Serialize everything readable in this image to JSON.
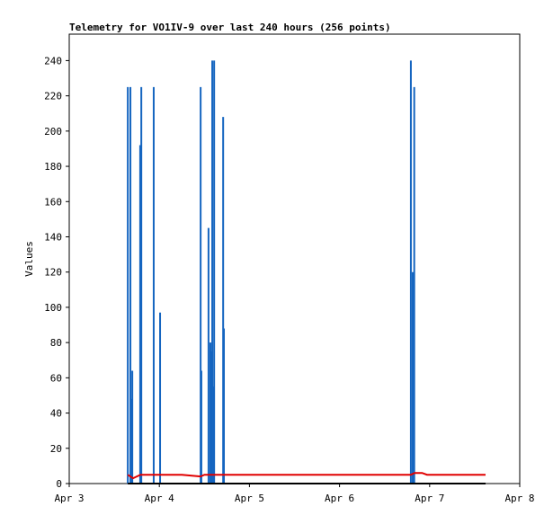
{
  "chart_data": {
    "type": "line",
    "title": "Telemetry for VO1IV-9 over last 240 hours (256 points)",
    "ylabel": "Values",
    "xlim": [
      0,
      120
    ],
    "xticks": [
      {
        "value": 0,
        "label": "Apr 3"
      },
      {
        "value": 24,
        "label": "Apr 4"
      },
      {
        "value": 48,
        "label": "Apr 5"
      },
      {
        "value": 72,
        "label": "Apr 6"
      },
      {
        "value": 96,
        "label": "Apr 7"
      },
      {
        "value": 120,
        "label": "Apr 8"
      }
    ],
    "ylim": [
      0,
      255
    ],
    "yticks": [
      0,
      20,
      40,
      60,
      80,
      100,
      120,
      140,
      160,
      180,
      200,
      220,
      240
    ],
    "series": [
      {
        "color": "#1565c0",
        "style": "impulse",
        "x": [
          15.6,
          16.3,
          16.5,
          16.8,
          18.9,
          19.2,
          22.5,
          24.2,
          35.0,
          35.2,
          37.1,
          37.6,
          37.8,
          38.1,
          38.3,
          38.6,
          41.0,
          41.2,
          91.0,
          91.5,
          91.9
        ],
        "values": [
          225,
          225,
          48,
          64,
          192,
          225,
          225,
          97,
          225,
          64,
          145,
          80,
          75,
          240,
          55,
          240,
          208,
          88,
          240,
          120,
          225
        ]
      },
      {
        "color": "#e00000",
        "style": "line",
        "x": [
          15.6,
          16.3,
          17.0,
          18.0,
          19.0,
          30.0,
          35.0,
          36.0,
          91.0,
          92.0,
          94.0,
          95.3,
          110.9
        ],
        "values": [
          5,
          4,
          3,
          4,
          5,
          5,
          4,
          5,
          5,
          6,
          6,
          5,
          5
        ]
      },
      {
        "color": "#000000",
        "style": "line",
        "x": [
          15.6,
          110.9
        ],
        "values": [
          0,
          0
        ]
      }
    ]
  }
}
